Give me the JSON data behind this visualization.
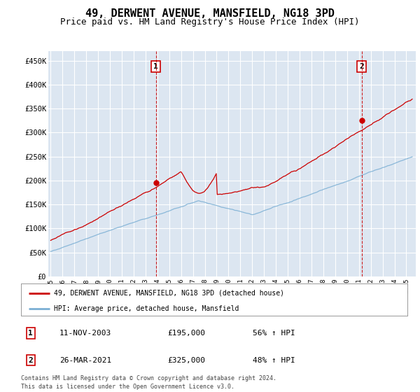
{
  "title": "49, DERWENT AVENUE, MANSFIELD, NG18 3PD",
  "subtitle": "Price paid vs. HM Land Registry's House Price Index (HPI)",
  "ylabel_ticks": [
    "£0",
    "£50K",
    "£100K",
    "£150K",
    "£200K",
    "£250K",
    "£300K",
    "£350K",
    "£400K",
    "£450K"
  ],
  "ytick_values": [
    0,
    50000,
    100000,
    150000,
    200000,
    250000,
    300000,
    350000,
    400000,
    450000
  ],
  "ylim": [
    0,
    470000
  ],
  "xlim_start": 1994.8,
  "xlim_end": 2025.8,
  "xtick_years": [
    1995,
    1996,
    1997,
    1998,
    1999,
    2000,
    2001,
    2002,
    2003,
    2004,
    2005,
    2006,
    2007,
    2008,
    2009,
    2010,
    2011,
    2012,
    2013,
    2014,
    2015,
    2016,
    2017,
    2018,
    2019,
    2020,
    2021,
    2022,
    2023,
    2024,
    2025
  ],
  "background_color": "#dce6f1",
  "grid_color": "#ffffff",
  "title_fontsize": 11,
  "subtitle_fontsize": 9,
  "property_line_color": "#cc0000",
  "hpi_line_color": "#7bafd4",
  "legend_label_property": "49, DERWENT AVENUE, MANSFIELD, NG18 3PD (detached house)",
  "legend_label_hpi": "HPI: Average price, detached house, Mansfield",
  "sale1_year": 2003.87,
  "sale1_price": 195000,
  "sale1_label": "1",
  "sale2_year": 2021.23,
  "sale2_price": 325000,
  "sale2_label": "2",
  "footer_text1": "Contains HM Land Registry data © Crown copyright and database right 2024.",
  "footer_text2": "This data is licensed under the Open Government Licence v3.0.",
  "table_row1": [
    "1",
    "11-NOV-2003",
    "£195,000",
    "56% ↑ HPI"
  ],
  "table_row2": [
    "2",
    "26-MAR-2021",
    "£325,000",
    "48% ↑ HPI"
  ]
}
